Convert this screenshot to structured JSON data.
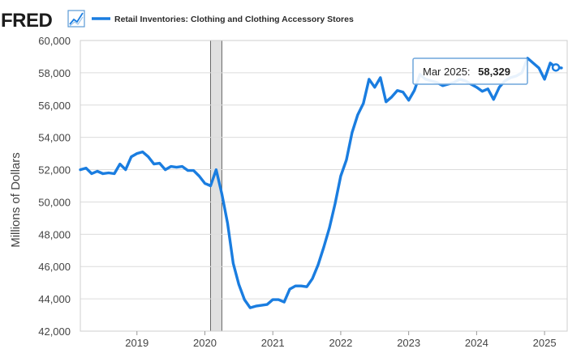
{
  "header": {
    "logo_text": "FRED",
    "logo_icon": "trend-line-icon"
  },
  "colors": {
    "series": "#1a7de0",
    "recession_fill": "#e1e1e1",
    "grid": "#dcdcdc",
    "plot_border": "#cfcfcf",
    "tooltip_border": "#6ea6dc"
  },
  "tooltip": {
    "date": "Mar 2025:",
    "value": "58,329"
  },
  "chart_data": {
    "type": "line",
    "title": "",
    "xlabel": "",
    "ylabel": "Millions of Dollars",
    "ylim": [
      42000,
      60000
    ],
    "xlim": [
      "2018-03",
      "2025-05"
    ],
    "grid": true,
    "legend": "top-left",
    "y_ticks": [
      "42,000",
      "44,000",
      "46,000",
      "48,000",
      "50,000",
      "52,000",
      "54,000",
      "56,000",
      "58,000",
      "60,000"
    ],
    "y_tick_values": [
      42000,
      44000,
      46000,
      48000,
      50000,
      52000,
      54000,
      56000,
      58000,
      60000
    ],
    "x_ticks": [
      "2019",
      "2020",
      "2021",
      "2022",
      "2023",
      "2024",
      "2025"
    ],
    "recessions": [
      {
        "start": "2020-02",
        "end": "2020-04"
      }
    ],
    "series": [
      {
        "name": "Retail Inventories: Clothing and Clothing Accessory Stores",
        "x": [
          "2018-03",
          "2018-04",
          "2018-05",
          "2018-06",
          "2018-07",
          "2018-08",
          "2018-09",
          "2018-10",
          "2018-11",
          "2018-12",
          "2019-01",
          "2019-02",
          "2019-03",
          "2019-04",
          "2019-05",
          "2019-06",
          "2019-07",
          "2019-08",
          "2019-09",
          "2019-10",
          "2019-11",
          "2019-12",
          "2020-01",
          "2020-02",
          "2020-03",
          "2020-04",
          "2020-05",
          "2020-06",
          "2020-07",
          "2020-08",
          "2020-09",
          "2020-10",
          "2020-11",
          "2020-12",
          "2021-01",
          "2021-02",
          "2021-03",
          "2021-04",
          "2021-05",
          "2021-06",
          "2021-07",
          "2021-08",
          "2021-09",
          "2021-10",
          "2021-11",
          "2021-12",
          "2022-01",
          "2022-02",
          "2022-03",
          "2022-04",
          "2022-05",
          "2022-06",
          "2022-07",
          "2022-08",
          "2022-09",
          "2022-10",
          "2022-11",
          "2022-12",
          "2023-01",
          "2023-02",
          "2023-03",
          "2023-04",
          "2023-05",
          "2023-06",
          "2023-07",
          "2023-08",
          "2023-09",
          "2023-10",
          "2023-11",
          "2023-12",
          "2024-01",
          "2024-02",
          "2024-03",
          "2024-04",
          "2024-05",
          "2024-06",
          "2024-07",
          "2024-08",
          "2024-09",
          "2024-10",
          "2024-11",
          "2024-12",
          "2025-01",
          "2025-02",
          "2025-03",
          "2025-04"
        ],
        "values": [
          52000,
          52100,
          51750,
          51900,
          51750,
          51800,
          51750,
          52350,
          52000,
          52800,
          53000,
          53100,
          52800,
          52350,
          52400,
          52000,
          52200,
          52150,
          52200,
          51950,
          51950,
          51600,
          51150,
          51000,
          52000,
          50500,
          48700,
          46200,
          44900,
          43950,
          43450,
          43550,
          43600,
          43650,
          43950,
          43950,
          43800,
          44600,
          44800,
          44800,
          44750,
          45250,
          46100,
          47200,
          48400,
          49900,
          51600,
          52600,
          54300,
          55400,
          56100,
          57600,
          57100,
          57700,
          56200,
          56500,
          56900,
          56800,
          56300,
          56900,
          57900,
          57600,
          57500,
          57400,
          57200,
          57300,
          57400,
          57600,
          57500,
          57300,
          57100,
          56850,
          57000,
          56350,
          57100,
          57500,
          57700,
          57800,
          58000,
          58900,
          58600,
          58300,
          57600,
          58600,
          58329,
          58300
        ]
      }
    ]
  }
}
